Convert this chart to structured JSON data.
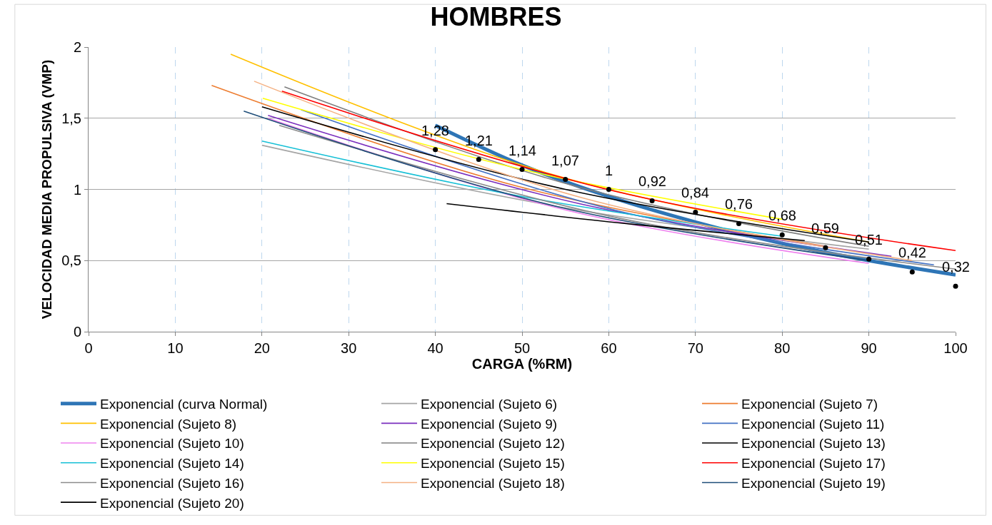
{
  "chart_data": {
    "type": "line",
    "title": "HOMBRES",
    "xlabel": "CARGA (%RM)",
    "ylabel": "VELOCIDAD MEDIA PROPULSIVA (VMP)",
    "xlim": [
      0,
      100
    ],
    "xticks": [
      0,
      10,
      20,
      30,
      40,
      50,
      60,
      70,
      80,
      90,
      100
    ],
    "ylim": [
      0,
      2
    ],
    "yticks": [
      0,
      {
        "value": 0.5,
        "label": "0,5"
      },
      1,
      {
        "value": 1.5,
        "label": "1,5"
      },
      2
    ],
    "grid": true,
    "legend": "bottom",
    "marker": "none",
    "line_style": "solid",
    "series": [
      {
        "name": "Exponencial (curva Normal)",
        "color": "#2e75b6",
        "x": [
          40,
          50,
          60,
          70,
          80,
          90,
          100
        ],
        "values": [
          1.45,
          1.17,
          0.95,
          0.77,
          0.62,
          0.5,
          0.4
        ]
      },
      {
        "name": "Exponencial (Sujeto 6)",
        "color": "#a5a5a5",
        "x": [
          20,
          55,
          90
        ],
        "values": [
          1.31,
          0.87,
          0.58
        ]
      },
      {
        "name": "Exponencial (Sujeto 7)",
        "color": "#ed7d31",
        "x": [
          14.2,
          49.6,
          85
        ],
        "values": [
          1.73,
          1.02,
          0.6
        ]
      },
      {
        "name": "Exponencial (Sujeto 8)",
        "color": "#ffc000",
        "x": [
          16.4,
          53.2,
          90
        ],
        "values": [
          1.95,
          1.11,
          0.63
        ]
      },
      {
        "name": "Exponencial (Sujeto 9)",
        "color": "#7b2fbe",
        "x": [
          20.7,
          56.6,
          92.6
        ],
        "values": [
          1.52,
          0.9,
          0.53
        ]
      },
      {
        "name": "Exponencial (Sujeto 11)",
        "color": "#4472c4",
        "x": [
          24.5,
          61,
          97.5
        ],
        "values": [
          1.56,
          0.85,
          0.47
        ]
      },
      {
        "name": "Exponencial (Sujeto 10)",
        "color": "#ee82ee",
        "x": [
          20.7,
          55.4,
          90
        ],
        "values": [
          1.5,
          0.85,
          0.48
        ]
      },
      {
        "name": "Exponencial (Sujeto 12)",
        "color": "#7f7f7f",
        "x": [
          22.6,
          56.3,
          90
        ],
        "values": [
          1.72,
          1.02,
          0.6
        ]
      },
      {
        "name": "Exponencial (Sujeto 13)",
        "color": "#000000",
        "x": [
          20,
          55,
          90
        ],
        "values": [
          1.58,
          1.0,
          0.63
        ]
      },
      {
        "name": "Exponencial (Sujeto 14)",
        "color": "#17c0d6",
        "x": [
          20,
          50,
          80
        ],
        "values": [
          1.34,
          0.95,
          0.67
        ]
      },
      {
        "name": "Exponencial (Sujeto 15)",
        "color": "#ffff00",
        "x": [
          20.1,
          50,
          80
        ],
        "values": [
          1.64,
          1.14,
          0.79
        ]
      },
      {
        "name": "Exponencial (Sujeto 17)",
        "color": "#ff0000",
        "x": [
          22.3,
          61.2,
          100
        ],
        "values": [
          1.69,
          0.98,
          0.57
        ]
      },
      {
        "name": "Exponencial (Sujeto 16)",
        "color": "#8c8c8c",
        "x": [
          22,
          61,
          100
        ],
        "values": [
          1.45,
          0.8,
          0.44
        ]
      },
      {
        "name": "Exponencial (Sujeto 18)",
        "color": "#f4b183",
        "x": [
          19.1,
          57,
          95
        ],
        "values": [
          1.76,
          0.94,
          0.5
        ]
      },
      {
        "name": "Exponencial (Sujeto 19)",
        "color": "#1f4e79",
        "x": [
          17.9,
          54,
          90
        ],
        "values": [
          1.55,
          0.88,
          0.5
        ]
      },
      {
        "name": "Exponencial (Sujeto 20)",
        "color": "#000000",
        "x": [
          41.3,
          62,
          82.6
        ],
        "values": [
          0.9,
          0.76,
          0.64
        ]
      },
      {
        "type": "scatter",
        "marker": "none",
        "color": "#000000",
        "x": [
          40,
          45,
          50,
          55,
          60,
          65,
          70,
          75,
          80,
          85,
          90,
          95,
          100
        ],
        "values": [
          1.28,
          1.21,
          1.14,
          1.07,
          1,
          0.92,
          0.84,
          0.76,
          0.68,
          0.59,
          0.51,
          0.42,
          0.32
        ],
        "value_labels": [
          "1,28",
          "1,21",
          "1,14",
          "1,07",
          "1",
          "0,92",
          "0,84",
          "0,76",
          "0,68",
          "0,59",
          "0,51",
          "0,42",
          "0,32"
        ]
      }
    ]
  }
}
